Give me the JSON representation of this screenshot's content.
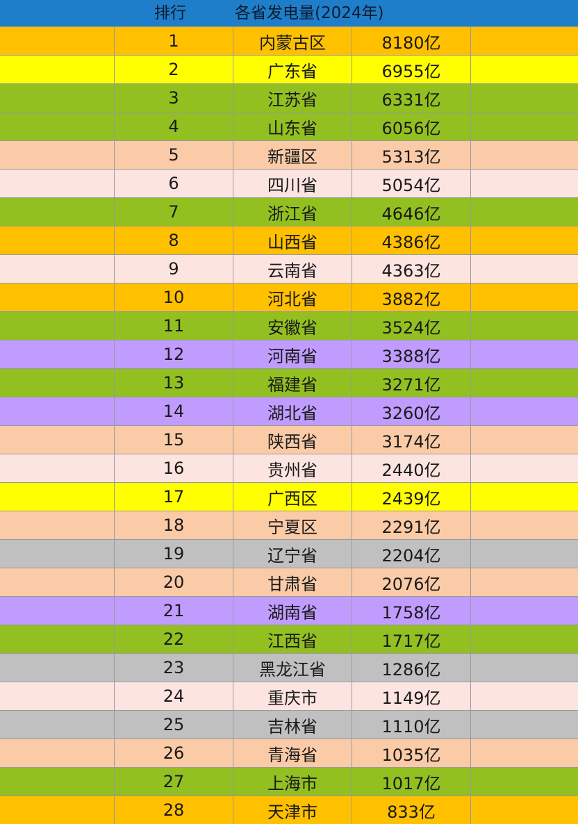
{
  "header": {
    "rank_label": "排行",
    "title": "各省发电量(2024年)",
    "bg": "#1f7ec9"
  },
  "colors": {
    "orange": "#ffc000",
    "yellow": "#ffff00",
    "green": "#92c020",
    "peach": "#fbcba8",
    "pink": "#fce4e0",
    "purple": "#c09cff",
    "gray": "#c0c0c0"
  },
  "rows": [
    {
      "rank": "1",
      "province": "内蒙古区",
      "value": "8180亿",
      "color": "orange"
    },
    {
      "rank": "2",
      "province": "广东省",
      "value": "6955亿",
      "color": "yellow"
    },
    {
      "rank": "3",
      "province": "江苏省",
      "value": "6331亿",
      "color": "green"
    },
    {
      "rank": "4",
      "province": "山东省",
      "value": "6056亿",
      "color": "green"
    },
    {
      "rank": "5",
      "province": "新疆区",
      "value": "5313亿",
      "color": "peach"
    },
    {
      "rank": "6",
      "province": "四川省",
      "value": "5054亿",
      "color": "pink"
    },
    {
      "rank": "7",
      "province": "浙江省",
      "value": "4646亿",
      "color": "green"
    },
    {
      "rank": "8",
      "province": "山西省",
      "value": "4386亿",
      "color": "orange"
    },
    {
      "rank": "9",
      "province": "云南省",
      "value": "4363亿",
      "color": "pink"
    },
    {
      "rank": "10",
      "province": "河北省",
      "value": "3882亿",
      "color": "orange"
    },
    {
      "rank": "11",
      "province": "安徽省",
      "value": "3524亿",
      "color": "green"
    },
    {
      "rank": "12",
      "province": "河南省",
      "value": "3388亿",
      "color": "purple"
    },
    {
      "rank": "13",
      "province": "福建省",
      "value": "3271亿",
      "color": "green"
    },
    {
      "rank": "14",
      "province": "湖北省",
      "value": "3260亿",
      "color": "purple"
    },
    {
      "rank": "15",
      "province": "陕西省",
      "value": "3174亿",
      "color": "peach"
    },
    {
      "rank": "16",
      "province": "贵州省",
      "value": "2440亿",
      "color": "pink"
    },
    {
      "rank": "17",
      "province": "广西区",
      "value": "2439亿",
      "color": "yellow"
    },
    {
      "rank": "18",
      "province": "宁夏区",
      "value": "2291亿",
      "color": "peach"
    },
    {
      "rank": "19",
      "province": "辽宁省",
      "value": "2204亿",
      "color": "gray"
    },
    {
      "rank": "20",
      "province": "甘肃省",
      "value": "2076亿",
      "color": "peach"
    },
    {
      "rank": "21",
      "province": "湖南省",
      "value": "1758亿",
      "color": "purple"
    },
    {
      "rank": "22",
      "province": "江西省",
      "value": "1717亿",
      "color": "green"
    },
    {
      "rank": "23",
      "province": "黑龙江省",
      "value": "1286亿",
      "color": "gray"
    },
    {
      "rank": "24",
      "province": "重庆市",
      "value": "1149亿",
      "color": "pink"
    },
    {
      "rank": "25",
      "province": "吉林省",
      "value": "1110亿",
      "color": "gray"
    },
    {
      "rank": "26",
      "province": "青海省",
      "value": "1035亿",
      "color": "peach"
    },
    {
      "rank": "27",
      "province": "上海市",
      "value": "1017亿",
      "color": "green"
    },
    {
      "rank": "28",
      "province": "天津市",
      "value": "833亿",
      "color": "orange"
    }
  ]
}
